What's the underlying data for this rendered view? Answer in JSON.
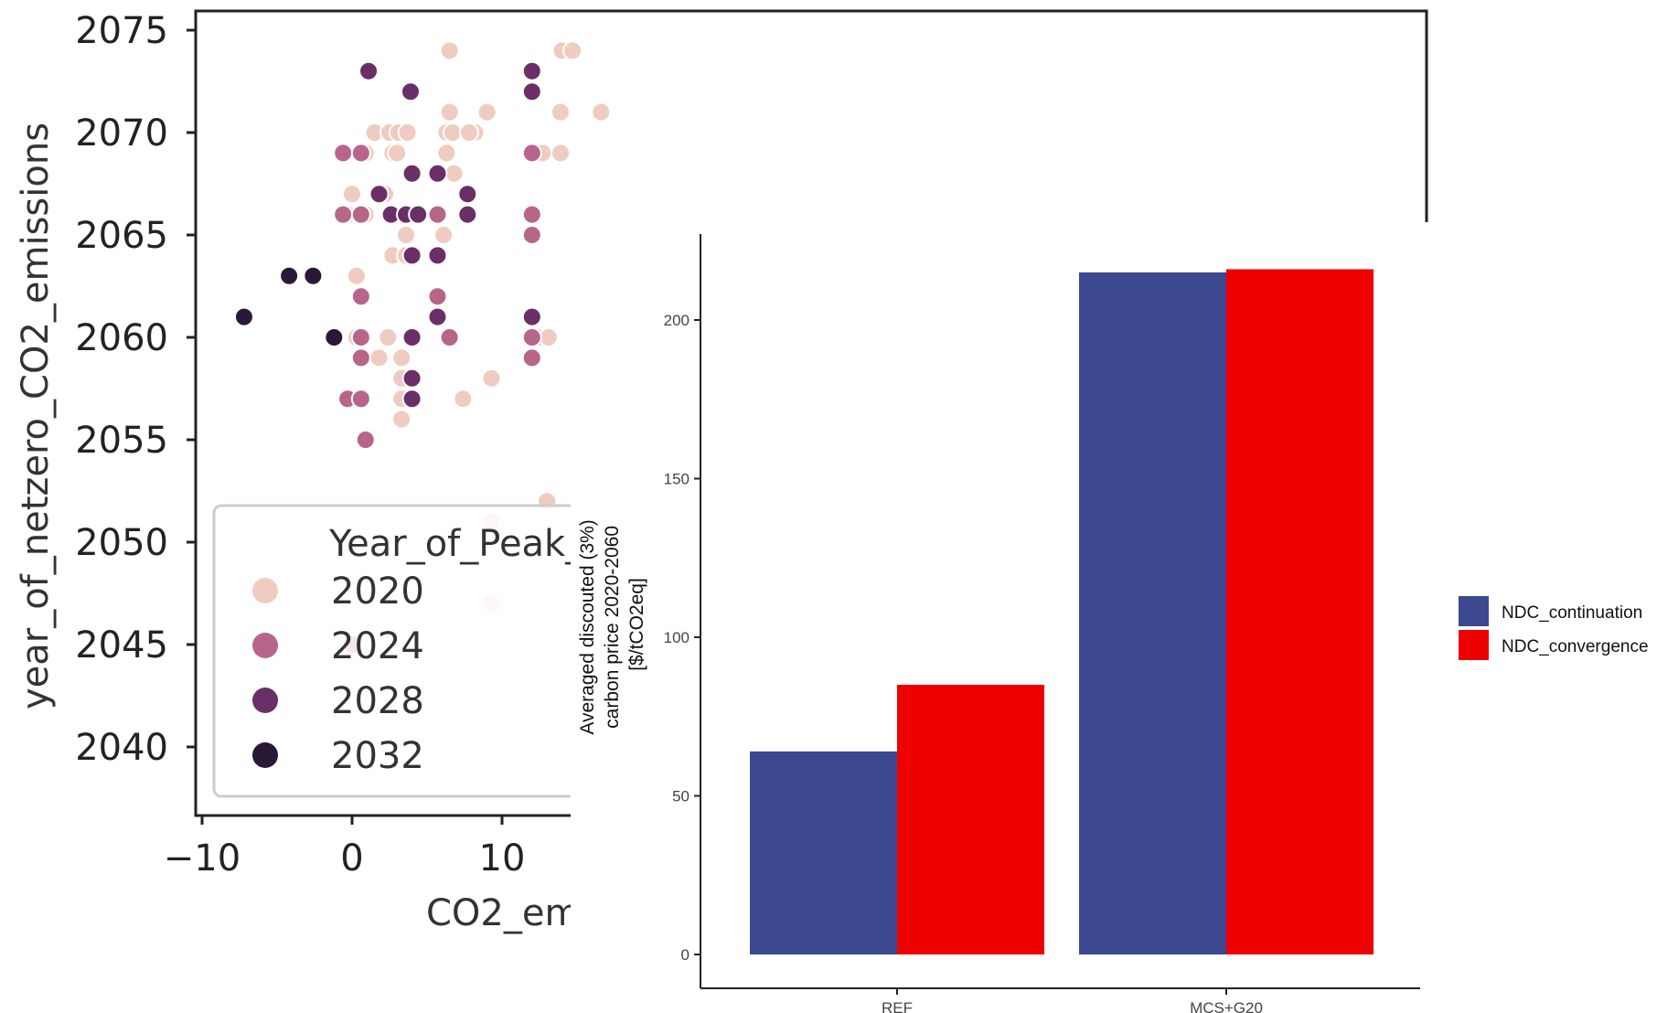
{
  "chart_data": [
    {
      "type": "scatter",
      "xlabel": "CO2_em",
      "ylabel": "year_of_netzero_CO2_emissions",
      "xlim": [
        -11,
        20
      ],
      "ylim": [
        2036,
        2076
      ],
      "x_ticks": [
        "−10",
        "0",
        "10"
      ],
      "y_ticks": [
        "2040",
        "2045",
        "2050",
        "2055",
        "2060",
        "2065",
        "2070",
        "2075"
      ],
      "legend": {
        "title": "Year_of_Peak_",
        "placement": "bottom-left",
        "entries": [
          {
            "label": "2020",
            "color": "#f0cbc0"
          },
          {
            "label": "2024",
            "color": "#b7668a"
          },
          {
            "label": "2028",
            "color": "#6a2f66"
          },
          {
            "label": "2032",
            "color": "#2a1839"
          }
        ]
      },
      "series": [
        {
          "name": "2020",
          "points": [
            [
              6.5,
              2074
            ],
            [
              14,
              2074
            ],
            [
              14.7,
              2074
            ],
            [
              9,
              2071
            ],
            [
              13.9,
              2071
            ],
            [
              16.6,
              2071
            ],
            [
              6.5,
              2071
            ],
            [
              6.3,
              2070
            ],
            [
              6.3,
              2069
            ],
            [
              13.9,
              2069
            ],
            [
              12.7,
              2069
            ],
            [
              8.2,
              2070
            ],
            [
              1.5,
              2070
            ],
            [
              2.5,
              2070
            ],
            [
              3.1,
              2070
            ],
            [
              3.7,
              2070
            ],
            [
              6.7,
              2070
            ],
            [
              7.8,
              2070
            ],
            [
              2.7,
              2069
            ],
            [
              0.9,
              2069
            ],
            [
              3,
              2069
            ],
            [
              6.8,
              2068
            ],
            [
              0,
              2067
            ],
            [
              2.2,
              2067
            ],
            [
              3.6,
              2065
            ],
            [
              6.1,
              2065
            ],
            [
              2.7,
              2064
            ],
            [
              3.6,
              2064
            ],
            [
              0.3,
              2063
            ],
            [
              2.4,
              2060
            ],
            [
              12.5,
              2060
            ],
            [
              13.1,
              2060
            ],
            [
              0.3,
              2060
            ],
            [
              1.8,
              2059
            ],
            [
              3.3,
              2059
            ],
            [
              3.3,
              2058
            ],
            [
              3.3,
              2057
            ],
            [
              7.4,
              2057
            ],
            [
              9.3,
              2058
            ],
            [
              3.3,
              2056
            ],
            [
              13,
              2052
            ],
            [
              9.3,
              2051
            ],
            [
              9.3,
              2047
            ],
            [
              -0.3,
              2066
            ],
            [
              0.9,
              2066
            ],
            [
              4.3,
              2066
            ],
            [
              5.7,
              2066
            ]
          ]
        },
        {
          "name": "2024",
          "points": [
            [
              -0.6,
              2069
            ],
            [
              0.6,
              2069
            ],
            [
              12,
              2069
            ],
            [
              -0.6,
              2066
            ],
            [
              0.6,
              2066
            ],
            [
              5.7,
              2066
            ],
            [
              12,
              2066
            ],
            [
              12,
              2065
            ],
            [
              0.6,
              2062
            ],
            [
              0.6,
              2060
            ],
            [
              0.6,
              2059
            ],
            [
              -0.3,
              2057
            ],
            [
              0.6,
              2057
            ],
            [
              0.9,
              2055
            ],
            [
              6.5,
              2060
            ],
            [
              12,
              2060
            ],
            [
              12,
              2059
            ],
            [
              5.7,
              2062
            ],
            [
              0,
              2045
            ]
          ]
        },
        {
          "name": "2028",
          "points": [
            [
              1.1,
              2073
            ],
            [
              3.9,
              2072
            ],
            [
              12,
              2073
            ],
            [
              12,
              2072
            ],
            [
              4,
              2068
            ],
            [
              5.7,
              2068
            ],
            [
              1.8,
              2067
            ],
            [
              7.7,
              2067
            ],
            [
              2.6,
              2066
            ],
            [
              3.6,
              2066
            ],
            [
              4.4,
              2066
            ],
            [
              7.7,
              2066
            ],
            [
              4,
              2064
            ],
            [
              5.7,
              2064
            ],
            [
              5.7,
              2061
            ],
            [
              12,
              2061
            ],
            [
              4,
              2060
            ],
            [
              4,
              2058
            ],
            [
              4,
              2057
            ]
          ]
        },
        {
          "name": "2032",
          "points": [
            [
              -7.2,
              2061
            ],
            [
              -4.2,
              2063
            ],
            [
              -2.6,
              2063
            ],
            [
              -1.2,
              2060
            ]
          ]
        }
      ]
    },
    {
      "type": "bar",
      "categories": [
        "REF",
        "MCS+G20"
      ],
      "ylabel": "Averaged discouted (3%) carbon price 2020-2060 [$/tCO2eq]",
      "ylim": [
        0,
        225
      ],
      "y_ticks": [
        "0",
        "50",
        "100",
        "150",
        "200"
      ],
      "legend": {
        "placement": "right"
      },
      "series": [
        {
          "name": "NDC_continuation",
          "color": "#3c4890",
          "values": [
            64,
            215
          ]
        },
        {
          "name": "NDC_convergence",
          "color": "#ee0000",
          "values": [
            85,
            216
          ]
        }
      ]
    }
  ]
}
